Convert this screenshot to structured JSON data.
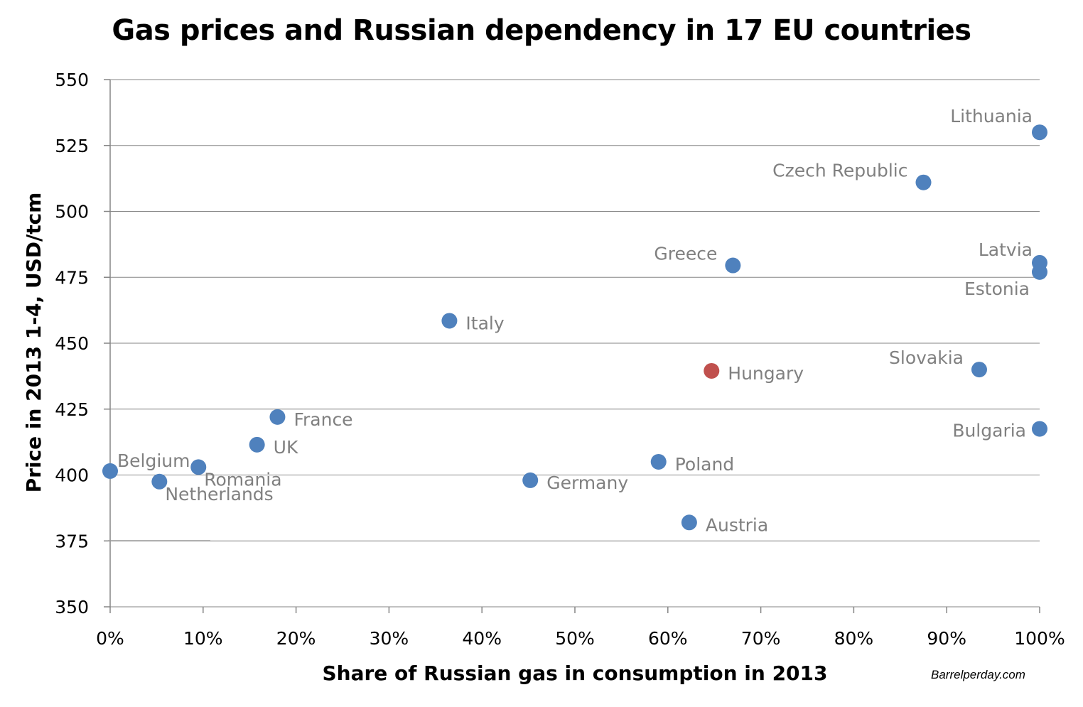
{
  "chart_data": {
    "type": "scatter",
    "title": "Gas prices and Russian dependency in 17 EU countries",
    "xlabel": "Share of Russian gas in consumption in 2013",
    "ylabel": "Price in 2013 1-4, USD/tcm",
    "xlim": [
      0,
      1
    ],
    "ylim": [
      350,
      550
    ],
    "x_ticks": [
      0,
      0.1,
      0.2,
      0.3,
      0.4,
      0.5,
      0.6,
      0.7,
      0.8,
      0.9,
      1.0
    ],
    "x_tick_labels": [
      "0%",
      "10%",
      "20%",
      "30%",
      "40%",
      "50%",
      "60%",
      "70%",
      "80%",
      "90%",
      "100%"
    ],
    "y_ticks": [
      350,
      375,
      400,
      425,
      450,
      475,
      500,
      525,
      550
    ],
    "y_tick_labels": [
      "350",
      "375",
      "400",
      "425",
      "450",
      "475",
      "500",
      "525",
      "550"
    ],
    "grid": "horizontal",
    "colors": {
      "default": "#4F81BD",
      "highlight": "#C0504D",
      "label": "#808080",
      "grid": "#868686"
    },
    "points": [
      {
        "name": "Belgium",
        "x": 0.0,
        "y": 401.5,
        "label_pos": "upper-right"
      },
      {
        "name": "Netherlands",
        "x": 0.053,
        "y": 397.5,
        "label_pos": "lower-right"
      },
      {
        "name": "Romania",
        "x": 0.095,
        "y": 403,
        "label_pos": "lower-right"
      },
      {
        "name": "UK",
        "x": 0.158,
        "y": 411.5,
        "label_pos": "right"
      },
      {
        "name": "France",
        "x": 0.18,
        "y": 422,
        "label_pos": "right"
      },
      {
        "name": "Italy",
        "x": 0.365,
        "y": 458.5,
        "label_pos": "right"
      },
      {
        "name": "Germany",
        "x": 0.452,
        "y": 398,
        "label_pos": "right"
      },
      {
        "name": "Poland",
        "x": 0.59,
        "y": 405,
        "label_pos": "right"
      },
      {
        "name": "Austria",
        "x": 0.623,
        "y": 382,
        "label_pos": "right"
      },
      {
        "name": "Hungary",
        "x": 0.647,
        "y": 439.5,
        "label_pos": "right",
        "highlight": true
      },
      {
        "name": "Greece",
        "x": 0.67,
        "y": 479.5,
        "label_pos": "upper-left"
      },
      {
        "name": "Czech Republic",
        "x": 0.875,
        "y": 511,
        "label_pos": "upper-left"
      },
      {
        "name": "Slovakia",
        "x": 0.935,
        "y": 440,
        "label_pos": "upper-left"
      },
      {
        "name": "Lithuania",
        "x": 1.0,
        "y": 530,
        "label_pos": "upper-left"
      },
      {
        "name": "Latvia",
        "x": 1.0,
        "y": 480.5,
        "label_pos": "upper-left"
      },
      {
        "name": "Estonia",
        "x": 1.0,
        "y": 477,
        "label_pos": "lower-left"
      },
      {
        "name": "Bulgaria",
        "x": 1.0,
        "y": 417.5,
        "label_pos": "left"
      }
    ]
  },
  "source": "Barrelperday.com"
}
